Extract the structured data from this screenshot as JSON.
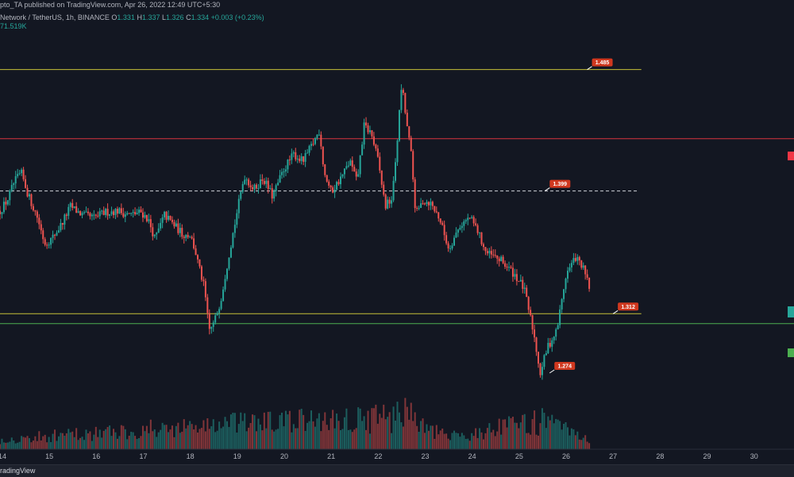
{
  "header": {
    "publish_text": "pto_TA published on TradingView.com, Apr 26, 2022 12:49 UTC+5:30",
    "symbol": "Network / TetherUS, 1h, BINANCE",
    "o_label": "O",
    "o": "1.331",
    "h_label": "H",
    "h": "1.337",
    "l_label": "L",
    "l": "1.326",
    "c_label": "C",
    "c": "1.334",
    "change": "+0.003 (+0.23%)",
    "volume": "71.519K"
  },
  "footer": {
    "brand": "radingView"
  },
  "colors": {
    "background": "#131722",
    "up": "#26a69a",
    "down": "#ef5350",
    "resistance_line": "#c5c038",
    "red_line": "#d8333e",
    "green_line": "#4caf50",
    "dashed_line": "#d1d4dc",
    "label_bg": "#d0381f"
  },
  "chart_data": {
    "type": "candlestick",
    "timeframe": "1h",
    "x_tick_labels": [
      "14",
      "15",
      "16",
      "17",
      "18",
      "19",
      "20",
      "21",
      "22",
      "23",
      "24",
      "25",
      "26",
      "27",
      "28",
      "29",
      "30"
    ],
    "x_ticks": [
      14,
      15,
      16,
      17,
      18,
      19,
      20,
      21,
      22,
      23,
      24,
      25,
      26,
      27,
      28,
      29,
      30
    ],
    "xlim": [
      13.95,
      30.85
    ],
    "ylim": [
      1.216,
      1.509
    ],
    "close_path": [
      [
        13.95,
        1.385
      ],
      [
        14.1,
        1.392
      ],
      [
        14.25,
        1.405
      ],
      [
        14.4,
        1.412
      ],
      [
        14.55,
        1.396
      ],
      [
        14.75,
        1.38
      ],
      [
        14.9,
        1.362
      ],
      [
        15.05,
        1.365
      ],
      [
        15.25,
        1.375
      ],
      [
        15.45,
        1.388
      ],
      [
        15.7,
        1.382
      ],
      [
        15.95,
        1.38
      ],
      [
        16.2,
        1.384
      ],
      [
        16.45,
        1.385
      ],
      [
        16.7,
        1.382
      ],
      [
        16.95,
        1.384
      ],
      [
        17.1,
        1.379
      ],
      [
        17.25,
        1.365
      ],
      [
        17.45,
        1.382
      ],
      [
        17.65,
        1.375
      ],
      [
        17.85,
        1.368
      ],
      [
        18.0,
        1.368
      ],
      [
        18.1,
        1.357
      ],
      [
        18.2,
        1.343
      ],
      [
        18.3,
        1.33
      ],
      [
        18.4,
        1.3
      ],
      [
        18.5,
        1.305
      ],
      [
        18.65,
        1.322
      ],
      [
        18.8,
        1.35
      ],
      [
        19.0,
        1.385
      ],
      [
        19.15,
        1.41
      ],
      [
        19.35,
        1.4
      ],
      [
        19.55,
        1.408
      ],
      [
        19.75,
        1.395
      ],
      [
        20.0,
        1.415
      ],
      [
        20.2,
        1.425
      ],
      [
        20.4,
        1.42
      ],
      [
        20.6,
        1.432
      ],
      [
        20.75,
        1.442
      ],
      [
        20.85,
        1.412
      ],
      [
        21.0,
        1.398
      ],
      [
        21.2,
        1.408
      ],
      [
        21.4,
        1.42
      ],
      [
        21.55,
        1.405
      ],
      [
        21.7,
        1.445
      ],
      [
        21.85,
        1.44
      ],
      [
        22.0,
        1.42
      ],
      [
        22.15,
        1.388
      ],
      [
        22.3,
        1.394
      ],
      [
        22.4,
        1.433
      ],
      [
        22.5,
        1.475
      ],
      [
        22.6,
        1.448
      ],
      [
        22.7,
        1.425
      ],
      [
        22.8,
        1.382
      ],
      [
        22.95,
        1.392
      ],
      [
        23.1,
        1.391
      ],
      [
        23.3,
        1.38
      ],
      [
        23.5,
        1.358
      ],
      [
        23.75,
        1.375
      ],
      [
        23.95,
        1.38
      ],
      [
        24.1,
        1.372
      ],
      [
        24.3,
        1.355
      ],
      [
        24.6,
        1.35
      ],
      [
        24.9,
        1.34
      ],
      [
        25.1,
        1.33
      ],
      [
        25.3,
        1.3
      ],
      [
        25.45,
        1.27
      ],
      [
        25.6,
        1.288
      ],
      [
        25.8,
        1.3
      ],
      [
        26.0,
        1.34
      ],
      [
        26.2,
        1.352
      ],
      [
        26.35,
        1.345
      ],
      [
        26.5,
        1.33
      ]
    ],
    "volume_path": [
      [
        13.95,
        0.012
      ],
      [
        18.4,
        0.03
      ],
      [
        22.4,
        0.04
      ],
      [
        22.55,
        0.05
      ],
      [
        22.7,
        0.06
      ],
      [
        22.8,
        0.03
      ],
      [
        23.5,
        0.015
      ],
      [
        25.5,
        0.035
      ],
      [
        26.5,
        0.01
      ]
    ],
    "horizontal_lines": [
      {
        "price": 1.485,
        "style": "solid",
        "color": "#c5c038",
        "x_end": 27.6,
        "label": "1.485",
        "label_x": 26.55
      },
      {
        "price": 1.436,
        "style": "solid",
        "color": "#d8333e",
        "x_end": 30.85
      },
      {
        "price": 1.399,
        "style": "dashed",
        "color": "#d1d4dc",
        "x_end": 27.55,
        "label": "1.399",
        "label_x": 25.65
      },
      {
        "price": 1.312,
        "style": "solid",
        "color": "#c5c038",
        "x_end": 27.6,
        "label": "1.312",
        "label_x": 27.1
      },
      {
        "price": 1.305,
        "style": "solid",
        "color": "#4caf50",
        "x_end": 30.85
      }
    ],
    "low_annotation": {
      "label": "1.274",
      "x": 25.55,
      "price": 1.27
    }
  }
}
